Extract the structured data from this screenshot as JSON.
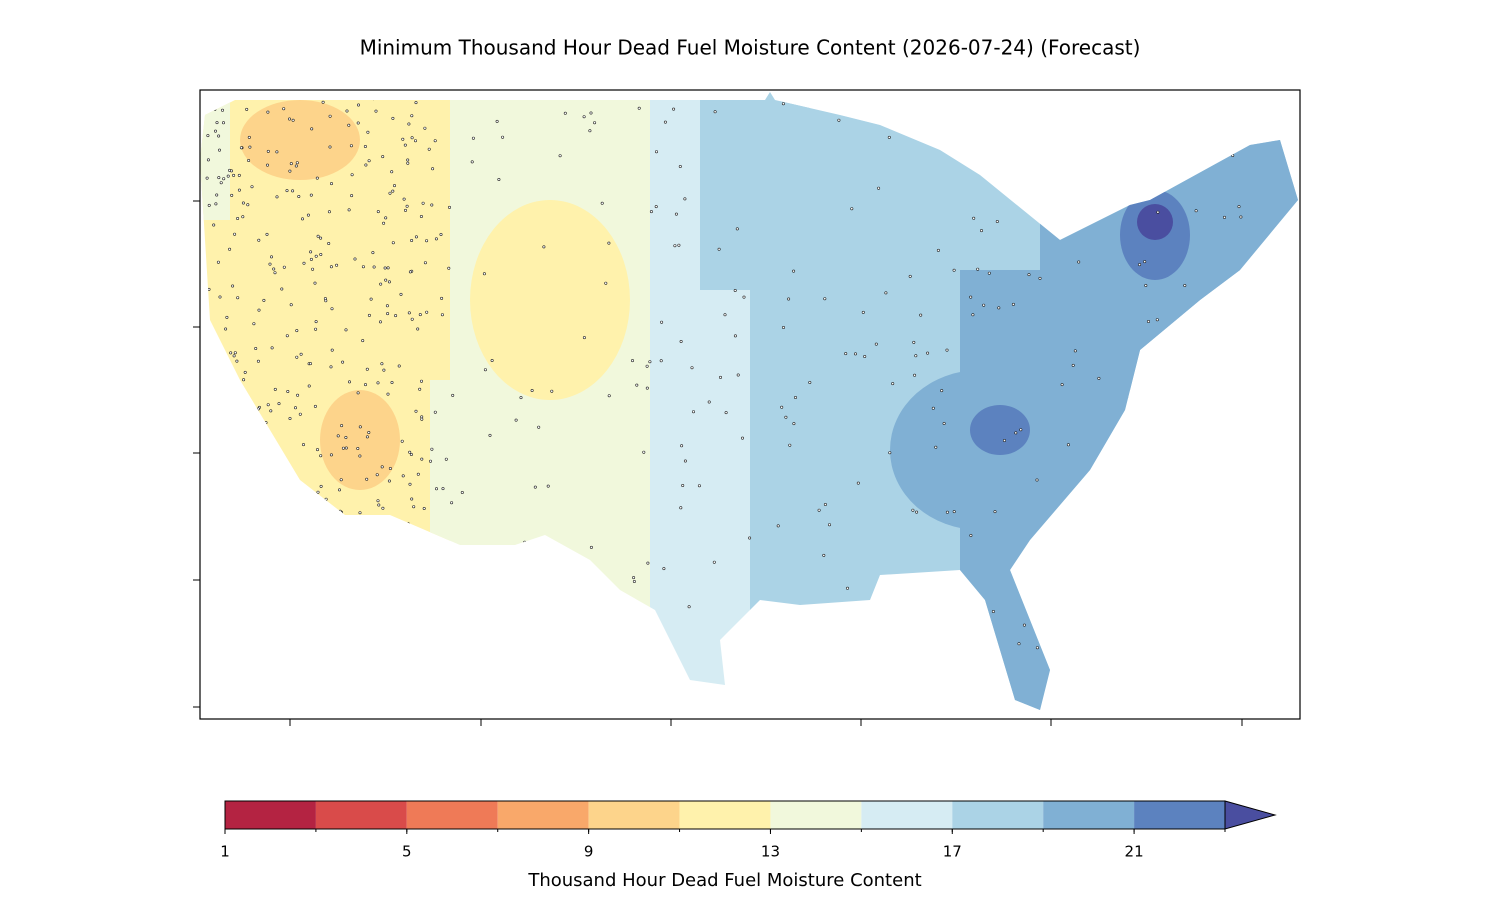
{
  "title": "Minimum Thousand Hour Dead Fuel Moisture Content (2026-07-24) (Forecast)",
  "colorbar": {
    "label": "Thousand Hour Dead Fuel Moisture Content",
    "levels": [
      1,
      3,
      5,
      7,
      9,
      11,
      13,
      15,
      17,
      19,
      21,
      23
    ],
    "colors": [
      "#b42342",
      "#d94b4a",
      "#ef7a57",
      "#f9a86a",
      "#fdd48b",
      "#fff2ac",
      "#f1f8dc",
      "#d6ecf3",
      "#abd3e6",
      "#80b0d4",
      "#5c82bf"
    ],
    "extend": "max",
    "extend_color": "#4a4ea0",
    "ticks": [
      1,
      5,
      9,
      13,
      17,
      21
    ]
  }
}
